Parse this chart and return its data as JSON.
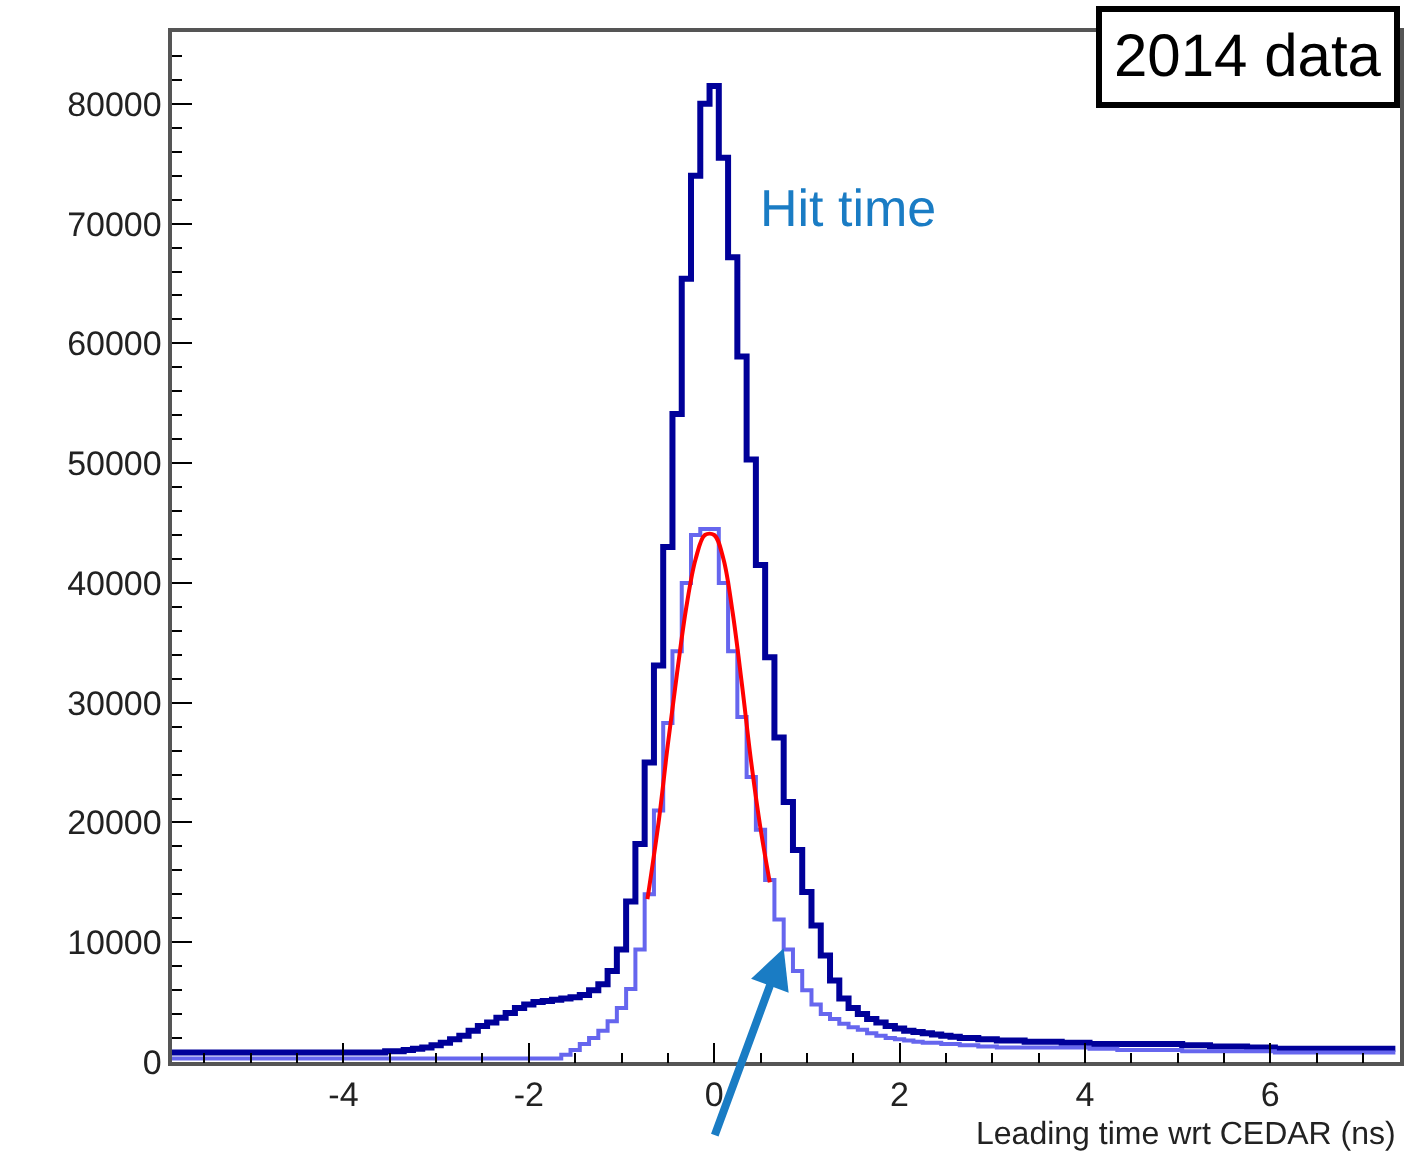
{
  "chart_data": {
    "type": "histogram",
    "xlabel": "Leading time wrt CEDAR (ns)",
    "annotations": [
      "2014 data",
      "Hit time"
    ],
    "bins": [
      -5.85,
      -5.75,
      -5.65,
      -5.55,
      -5.45,
      -5.35,
      -5.25,
      -5.15,
      -5.05,
      -4.95,
      -4.85,
      -4.75,
      -4.65,
      -4.55,
      -4.45,
      -4.35,
      -4.25,
      -4.15,
      -4.05,
      -3.95,
      -3.85,
      -3.75,
      -3.65,
      -3.55,
      -3.45,
      -3.35,
      -3.25,
      -3.15,
      -3.05,
      -2.95,
      -2.85,
      -2.75,
      -2.65,
      -2.55,
      -2.45,
      -2.35,
      -2.25,
      -2.15,
      -2.05,
      -1.95,
      -1.85,
      -1.75,
      -1.65,
      -1.55,
      -1.45,
      -1.35,
      -1.25,
      -1.15,
      -1.05,
      -0.95,
      -0.85,
      -0.75,
      -0.65,
      -0.55,
      -0.45,
      -0.35,
      -0.25,
      -0.15,
      -0.05,
      0.05,
      0.15,
      0.25,
      0.35,
      0.45,
      0.55,
      0.65,
      0.75,
      0.85,
      0.95,
      1.05,
      1.15,
      1.25,
      1.35,
      1.45,
      1.55,
      1.65,
      1.75,
      1.85,
      1.95,
      2.05,
      2.15,
      2.25,
      2.35,
      2.45,
      2.55,
      2.65,
      2.75,
      2.85,
      2.95,
      3.05,
      3.15,
      3.25,
      3.35,
      3.45,
      3.55,
      3.65,
      3.75,
      3.85,
      3.95,
      4.05,
      4.15,
      4.25,
      4.35,
      4.45,
      4.55,
      4.65,
      4.75,
      4.85,
      4.95,
      5.05,
      5.15,
      5.25,
      5.35,
      5.45,
      5.55,
      5.65,
      5.75,
      5.85,
      5.95,
      6.05,
      6.15,
      6.25,
      6.35,
      6.45,
      6.55,
      6.65,
      6.75,
      6.85,
      6.95,
      7.05,
      7.15,
      7.25,
      7.35
    ],
    "series": [
      {
        "color": "#000099",
        "values": [
          800,
          800,
          800,
          800,
          800,
          800,
          800,
          800,
          800,
          800,
          800,
          800,
          800,
          800,
          800,
          800,
          800,
          800,
          800,
          800,
          800,
          800,
          800,
          900,
          900,
          1000,
          1100,
          1200,
          1400,
          1600,
          1900,
          2200,
          2600,
          3000,
          3300,
          3700,
          4100,
          4500,
          4800,
          5000,
          5100,
          5200,
          5300,
          5400,
          5600,
          6000,
          6500,
          7600,
          9400,
          13400,
          18200,
          25000,
          33100,
          43000,
          54100,
          65400,
          74000,
          80000,
          81500,
          75500,
          67200,
          58900,
          50300,
          41500,
          33800,
          27100,
          21700,
          17700,
          14200,
          11400,
          8900,
          6800,
          5300,
          4500,
          4000,
          3600,
          3300,
          3000,
          2800,
          2600,
          2500,
          2400,
          2300,
          2200,
          2100,
          2000,
          2000,
          1900,
          1900,
          1800,
          1800,
          1800,
          1700,
          1700,
          1700,
          1700,
          1600,
          1600,
          1600,
          1500,
          1500,
          1500,
          1500,
          1500,
          1500,
          1500,
          1500,
          1500,
          1500,
          1400,
          1400,
          1400,
          1300,
          1300,
          1300,
          1300,
          1200,
          1200,
          1200,
          1100,
          1100,
          1100,
          1100,
          1100,
          1100,
          1100,
          1100,
          1100,
          1100,
          1100,
          1100,
          1100
        ]
      },
      {
        "color": "#6666ee",
        "values": [
          300,
          300,
          300,
          300,
          300,
          300,
          300,
          300,
          300,
          300,
          300,
          300,
          300,
          300,
          300,
          300,
          300,
          300,
          300,
          300,
          300,
          300,
          300,
          300,
          300,
          300,
          300,
          300,
          300,
          300,
          300,
          300,
          300,
          300,
          300,
          300,
          300,
          300,
          300,
          300,
          300,
          300,
          600,
          1000,
          1500,
          2000,
          2600,
          3400,
          4500,
          6100,
          9400,
          14000,
          21000,
          28300,
          34300,
          40000,
          44000,
          44500,
          44500,
          40000,
          34300,
          28800,
          23800,
          19400,
          15200,
          11900,
          9400,
          7600,
          6000,
          4800,
          4000,
          3600,
          3200,
          2900,
          2700,
          2400,
          2200,
          2000,
          1900,
          1800,
          1700,
          1600,
          1600,
          1500,
          1500,
          1400,
          1400,
          1300,
          1300,
          1200,
          1200,
          1200,
          1200,
          1200,
          1200,
          1200,
          1200,
          1200,
          1200,
          1100,
          1100,
          1100,
          1000,
          1000,
          1000,
          1000,
          1000,
          1000,
          1000,
          900,
          900,
          900,
          900,
          900,
          900,
          900,
          900,
          900,
          900,
          800,
          800,
          800,
          800,
          800,
          800,
          800,
          800,
          800,
          800,
          800,
          800,
          800
        ]
      },
      {
        "type": "line",
        "color": "#ff0000",
        "x": [
          -0.72,
          -0.6,
          -0.5,
          -0.4,
          -0.3,
          -0.2,
          -0.1,
          0.0,
          0.1,
          0.2,
          0.3,
          0.4,
          0.5,
          0.6
        ],
        "values": [
          13600,
          20000,
          26500,
          32500,
          38000,
          42000,
          44000,
          44000,
          42000,
          37500,
          31500,
          25000,
          19500,
          15000
        ]
      }
    ],
    "xlim": [
      -5.85,
      7.4
    ],
    "ylim": [
      0,
      86000
    ],
    "xticks": [
      -4,
      -2,
      0,
      2,
      4,
      6
    ],
    "yticks": [
      0,
      10000,
      20000,
      30000,
      40000,
      50000,
      60000,
      70000,
      80000
    ]
  }
}
